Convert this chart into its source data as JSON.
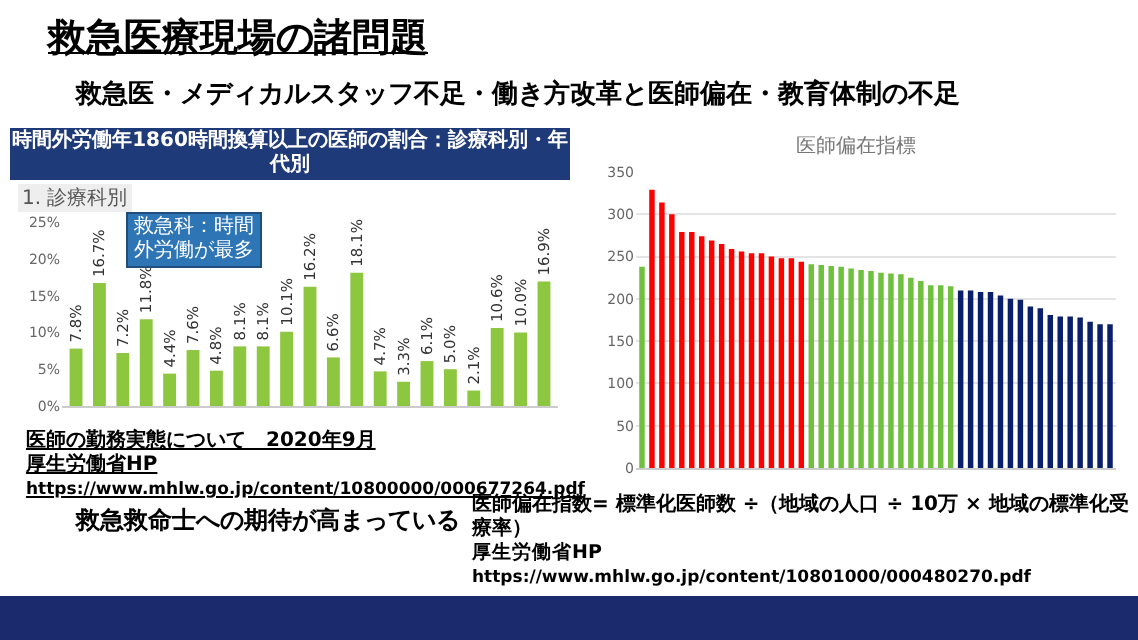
{
  "chart_data": [
    {
      "type": "bar",
      "title": "時間外労働年1860時間換算以上の医師の割合：診療科別・年代別",
      "subtitle": "1. 診療科別",
      "categories": [
        null,
        null,
        null,
        null,
        null,
        null,
        null,
        null,
        null,
        null,
        null,
        null,
        null,
        null,
        null,
        null,
        null,
        null,
        null,
        null,
        null
      ],
      "values": [
        7.8,
        16.7,
        7.2,
        11.8,
        4.4,
        7.6,
        4.8,
        8.1,
        8.1,
        10.1,
        16.2,
        6.6,
        18.1,
        4.7,
        3.3,
        6.1,
        5.0,
        2.1,
        10.6,
        10.0,
        16.9
      ],
      "value_labels": [
        "7.8%",
        "16.7%",
        "7.2%",
        "11.8%",
        "4.4%",
        "7.6%",
        "4.8%",
        "8.1%",
        "8.1%",
        "10.1%",
        "16.2%",
        "6.6%",
        "18.1%",
        "4.7%",
        "3.3%",
        "6.1%",
        "5.0%",
        "2.1%",
        "10.6%",
        "10.0%",
        "16.9%"
      ],
      "color": "#8dc63f",
      "ylim": [
        0,
        25
      ],
      "yticks": [
        {
          "value": 0,
          "label": "0%"
        },
        {
          "value": 5,
          "label": "5%"
        },
        {
          "value": 10,
          "label": "10%"
        },
        {
          "value": 15,
          "label": "15%"
        },
        {
          "value": 20,
          "label": "20%"
        },
        {
          "value": 25,
          "label": "25%"
        }
      ],
      "grid": false,
      "annotations": [
        "救急科：時間外労働が最多",
        "医師の勤務実態について　2020年9月",
        "厚生労働省HP",
        "https://www.mhlw.go.jp/content/10800000/000677264.pdf"
      ]
    },
    {
      "type": "bar",
      "title": "医師偏在指標",
      "categories": [
        null,
        null,
        null,
        null,
        null,
        null,
        null,
        null,
        null,
        null,
        null,
        null,
        null,
        null,
        null,
        null,
        null,
        null,
        null,
        null,
        null,
        null,
        null,
        null,
        null,
        null,
        null,
        null,
        null,
        null,
        null,
        null,
        null,
        null,
        null,
        null,
        null,
        null,
        null,
        null,
        null,
        null,
        null,
        null,
        null,
        null,
        null,
        null
      ],
      "values": [
        238,
        329,
        314,
        300,
        279,
        279,
        274,
        269,
        265,
        259,
        256,
        254,
        254,
        250,
        248,
        248,
        244,
        241,
        240,
        239,
        238,
        236,
        234,
        233,
        231,
        230,
        229,
        225,
        221,
        216,
        216,
        215,
        210,
        210,
        208,
        208,
        204,
        200,
        199,
        191,
        189,
        181,
        179,
        179,
        178,
        173,
        170,
        170
      ],
      "colors": [
        "#70c040",
        "#ff0000",
        "#ff0000",
        "#ff0000",
        "#ff0000",
        "#ff0000",
        "#ff0000",
        "#ff0000",
        "#ff0000",
        "#ff0000",
        "#ff0000",
        "#ff0000",
        "#ff0000",
        "#ff0000",
        "#ff0000",
        "#ff0000",
        "#ff0000",
        "#70c040",
        "#70c040",
        "#70c040",
        "#70c040",
        "#70c040",
        "#70c040",
        "#70c040",
        "#70c040",
        "#70c040",
        "#70c040",
        "#70c040",
        "#70c040",
        "#70c040",
        "#70c040",
        "#70c040",
        "#0a1f6a",
        "#0a1f6a",
        "#0a1f6a",
        "#0a1f6a",
        "#0a1f6a",
        "#0a1f6a",
        "#0a1f6a",
        "#0a1f6a",
        "#0a1f6a",
        "#0a1f6a",
        "#0a1f6a",
        "#0a1f6a",
        "#0a1f6a",
        "#0a1f6a",
        "#0a1f6a",
        "#0a1f6a"
      ],
      "ylim": [
        0,
        350
      ],
      "yticks": [
        0,
        50,
        100,
        150,
        200,
        250,
        300,
        350
      ],
      "grid": "y",
      "annotations": [
        "医師偏在指数= 標準化医師数 ÷（地域の人口 ÷ 10万 × 地域の標準化受療率）",
        "厚生労働省HP",
        "https://www.mhlw.go.jp/content/10801000/000480270.pdf"
      ]
    },
    {
      "type": "other",
      "title": "救急医療現場の諸問題",
      "subtitle": "救急医・メディカルスタッフ不足・働き方改革と医師偏在・教育体制の不足",
      "annotations": [
        "救急救命士への期待が高まっている"
      ]
    }
  ]
}
